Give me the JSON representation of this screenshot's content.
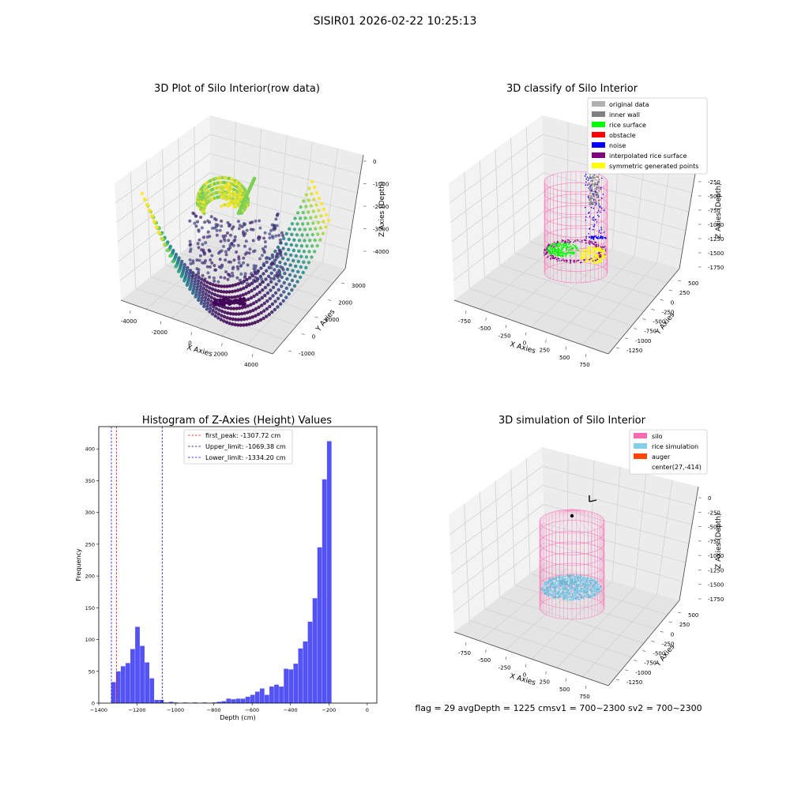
{
  "suptitle": "SISIR01 2026-02-22 10:25:13",
  "chart_data": [
    {
      "type": "scatter",
      "projection": "3d",
      "title": "3D Plot of Silo Interior(row data)",
      "xlabel": "X Axies",
      "ylabel": "Y Axies",
      "zlabel": "Z Axies (Depth)",
      "x_ticks": [
        "-4000",
        "-2000",
        "0",
        "2000",
        "4000"
      ],
      "y_ticks": [
        "-1000",
        "0",
        "1000",
        "2000",
        "3000"
      ],
      "z_ticks": [
        "0",
        "-1000",
        "-2000",
        "-3000",
        "-4000"
      ],
      "xlim": [
        -4500,
        4500
      ],
      "ylim": [
        -1500,
        3500
      ],
      "zlim": [
        -4700,
        200
      ],
      "colormap": "viridis",
      "grid": true
    },
    {
      "type": "scatter",
      "projection": "3d",
      "title": "3D classify of Silo Interior",
      "xlabel": "X Axies",
      "ylabel": "Y Axies",
      "zlabel": "Z Axies (Depth)",
      "x_ticks": [
        "-750",
        "-500",
        "-250",
        "0",
        "250",
        "500",
        "750"
      ],
      "y_ticks": [
        "-1250",
        "-1000",
        "-750",
        "-500",
        "-250",
        "0",
        "250",
        "500"
      ],
      "z_ticks": [
        "-250",
        "-500",
        "-750",
        "-1000",
        "-1250",
        "-1500",
        "-1750"
      ],
      "legend": {
        "placement": "top-right",
        "entries": [
          {
            "label": "original data",
            "color": "#b0b0b0"
          },
          {
            "label": "inner wall",
            "color": "#808080"
          },
          {
            "label": "rice surface",
            "color": "#00ff00"
          },
          {
            "label": "obstacle",
            "color": "#ff0000"
          },
          {
            "label": "noise",
            "color": "#0000ff"
          },
          {
            "label": "interpolated rice surface",
            "color": "#800080"
          },
          {
            "label": "symmetric generated points",
            "color": "#ffff00"
          }
        ]
      },
      "grid": true
    },
    {
      "type": "bar",
      "title": "Histogram of Z-Axies (Height) Values",
      "xlabel": "Depth (cm)",
      "ylabel": "Frequency",
      "xlim": [
        -1400,
        50
      ],
      "ylim": [
        0,
        435
      ],
      "x_ticks": [
        -1400,
        -1200,
        -1000,
        -800,
        -600,
        -400,
        -200,
        0
      ],
      "y_ticks": [
        0,
        50,
        100,
        150,
        200,
        250,
        300,
        350,
        400
      ],
      "bar_color": "#4a4af5",
      "bin_width": 25,
      "bin_edges_start": -1335,
      "values": [
        33,
        50,
        58,
        63,
        85,
        120,
        90,
        64,
        39,
        5,
        5,
        1,
        2,
        1,
        0,
        1,
        0,
        1,
        0,
        1,
        0,
        1,
        2,
        3,
        7,
        6,
        7,
        7,
        10,
        13,
        18,
        23,
        13,
        26,
        29,
        26,
        54,
        53,
        62,
        86,
        97,
        128,
        165,
        245,
        352,
        412
      ],
      "vlines": [
        {
          "label": "first_peak: -1307.72 cm",
          "x": -1307.72,
          "color": "#ff0000"
        },
        {
          "label": "Upper_limit: -1069.38 cm",
          "x": -1069.38,
          "color": "#00008b"
        },
        {
          "label": "Lower_limit: -1334.20 cm",
          "x": -1334.2,
          "color": "#0000ff"
        }
      ],
      "legend": {
        "placement": "top-center"
      },
      "grid": false
    },
    {
      "type": "scatter",
      "projection": "3d",
      "title": "3D simulation of Silo Interior",
      "xlabel": "X Axies",
      "ylabel": "Y Axies",
      "zlabel": "Z Axies (Depth)",
      "x_ticks": [
        "-750",
        "-500",
        "-250",
        "0",
        "250",
        "500",
        "750"
      ],
      "y_ticks": [
        "-1250",
        "-1000",
        "-750",
        "-500",
        "-250",
        "0",
        "250",
        "500"
      ],
      "z_ticks": [
        "0",
        "-250",
        "-500",
        "-750",
        "-1000",
        "-1250",
        "-1500",
        "-1750"
      ],
      "legend": {
        "placement": "top-right",
        "entries": [
          {
            "label": "silo",
            "color": "#ff69b4"
          },
          {
            "label": "rice simulation",
            "color": "#87ceeb"
          },
          {
            "label": "auger",
            "color": "#ff4500"
          },
          {
            "label": "center(27,-414)",
            "color": ""
          }
        ]
      },
      "grid": true
    }
  ],
  "status_text": "flag = 29  avgDepth = 1225 cmsv1 = 700~2300  sv2 = 700~2300"
}
